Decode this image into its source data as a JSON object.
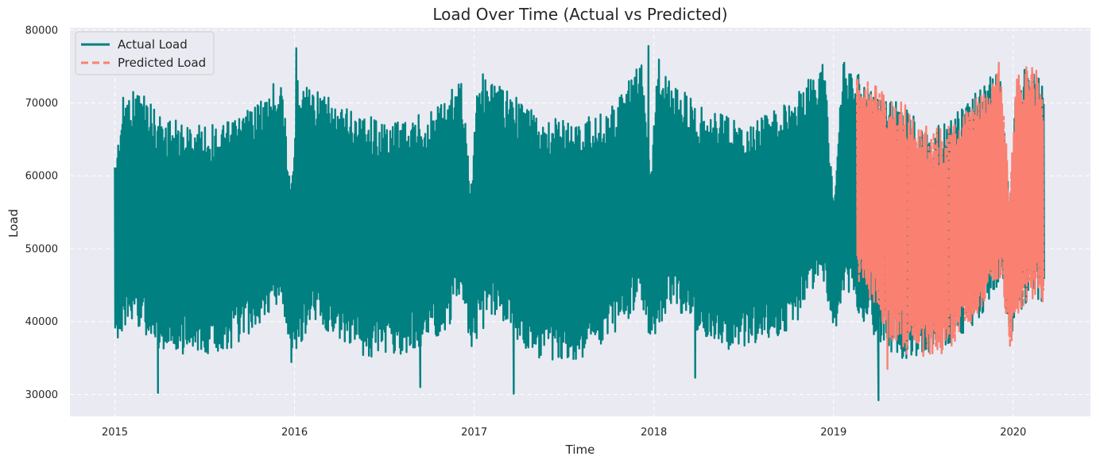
{
  "chart_data": {
    "type": "line",
    "title": "Load Over Time (Actual vs Predicted)",
    "xlabel": "Time",
    "ylabel": "Load",
    "xlim": [
      2014.75,
      2020.43
    ],
    "ylim": [
      27000,
      80300
    ],
    "xticks": [
      2015,
      2016,
      2017,
      2018,
      2019,
      2020
    ],
    "xtick_labels": [
      "2015",
      "2016",
      "2017",
      "2018",
      "2019",
      "2020"
    ],
    "yticks": [
      30000,
      40000,
      50000,
      60000,
      70000,
      80000
    ],
    "ytick_labels": [
      "30000",
      "40000",
      "50000",
      "60000",
      "70000",
      "80000"
    ],
    "grid": true,
    "legend": "top-left",
    "colors": {
      "actual": "#008080",
      "predicted": "#FA8072",
      "background": "#EAEAF2",
      "grid": "#ffffff"
    },
    "series": [
      {
        "name": "Actual Load",
        "style": "solid",
        "envelope": {
          "x": [
            2015.0,
            2015.05,
            2015.15,
            2015.25,
            2015.35,
            2015.5,
            2015.65,
            2015.75,
            2015.85,
            2015.93,
            2015.98,
            2016.02,
            2016.1,
            2016.25,
            2016.4,
            2016.5,
            2016.6,
            2016.75,
            2016.85,
            2016.93,
            2016.98,
            2017.02,
            2017.1,
            2017.25,
            2017.4,
            2017.5,
            2017.6,
            2017.75,
            2017.85,
            2017.93,
            2017.98,
            2018.02,
            2018.1,
            2018.25,
            2018.4,
            2018.5,
            2018.6,
            2018.75,
            2018.85,
            2018.95,
            2019.0,
            2019.05,
            2019.1,
            2019.15,
            2019.25,
            2019.4,
            2019.5,
            2019.6,
            2019.75,
            2019.85,
            2019.93,
            2019.98,
            2020.02,
            2020.1,
            2020.17
          ],
          "high": [
            62000,
            71500,
            72000,
            68500,
            67500,
            67000,
            67500,
            69500,
            71500,
            74500,
            57000,
            75000,
            72500,
            69500,
            69000,
            67500,
            68000,
            69000,
            71500,
            73500,
            59000,
            75000,
            73500,
            70500,
            68500,
            67500,
            68000,
            69000,
            72500,
            76000,
            60000,
            76500,
            73000,
            70000,
            68500,
            67000,
            68000,
            70000,
            73000,
            75500,
            57000,
            76000,
            75500,
            73500,
            70500,
            70000,
            66500,
            67000,
            70000,
            73500,
            74500,
            57000,
            74000,
            75000,
            72500
          ],
          "low": [
            36000,
            39500,
            38500,
            35500,
            35000,
            35500,
            36000,
            38500,
            41000,
            43000,
            34000,
            36500,
            40000,
            37500,
            35000,
            35500,
            35000,
            37000,
            39000,
            43000,
            36000,
            37500,
            41000,
            37000,
            34000,
            34500,
            35000,
            37500,
            40000,
            43000,
            36000,
            39000,
            42500,
            37500,
            36000,
            36500,
            37000,
            38500,
            42000,
            45000,
            38000,
            42500,
            44500,
            40000,
            37000,
            34500,
            35500,
            36500,
            38500,
            42000,
            45000,
            36500,
            41000,
            43000,
            42500
          ]
        },
        "notable_points": [
          {
            "x": 2015.24,
            "y": 30200
          },
          {
            "x": 2016.01,
            "y": 77500
          },
          {
            "x": 2016.7,
            "y": 31000
          },
          {
            "x": 2017.22,
            "y": 30100
          },
          {
            "x": 2017.97,
            "y": 77800
          },
          {
            "x": 2018.23,
            "y": 32300
          },
          {
            "x": 2019.25,
            "y": 29200
          }
        ]
      },
      {
        "name": "Predicted Load",
        "style": "dashed",
        "envelope": {
          "x": [
            2019.13,
            2019.2,
            2019.3,
            2019.4,
            2019.5,
            2019.6,
            2019.7,
            2019.8,
            2019.87,
            2019.93,
            2019.98,
            2020.02,
            2020.08,
            2020.13,
            2020.17
          ],
          "high": [
            73500,
            74000,
            70500,
            71000,
            67000,
            66500,
            68000,
            71000,
            73500,
            75500,
            59000,
            73500,
            75500,
            75000,
            72000
          ],
          "low": [
            44000,
            42500,
            38000,
            35500,
            35000,
            35500,
            37500,
            41000,
            44000,
            46000,
            36000,
            41000,
            42500,
            43500,
            42000
          ]
        },
        "notable_points": [
          {
            "x": 2019.3,
            "y": 33500
          },
          {
            "x": 2019.92,
            "y": 75500
          }
        ]
      }
    ]
  }
}
